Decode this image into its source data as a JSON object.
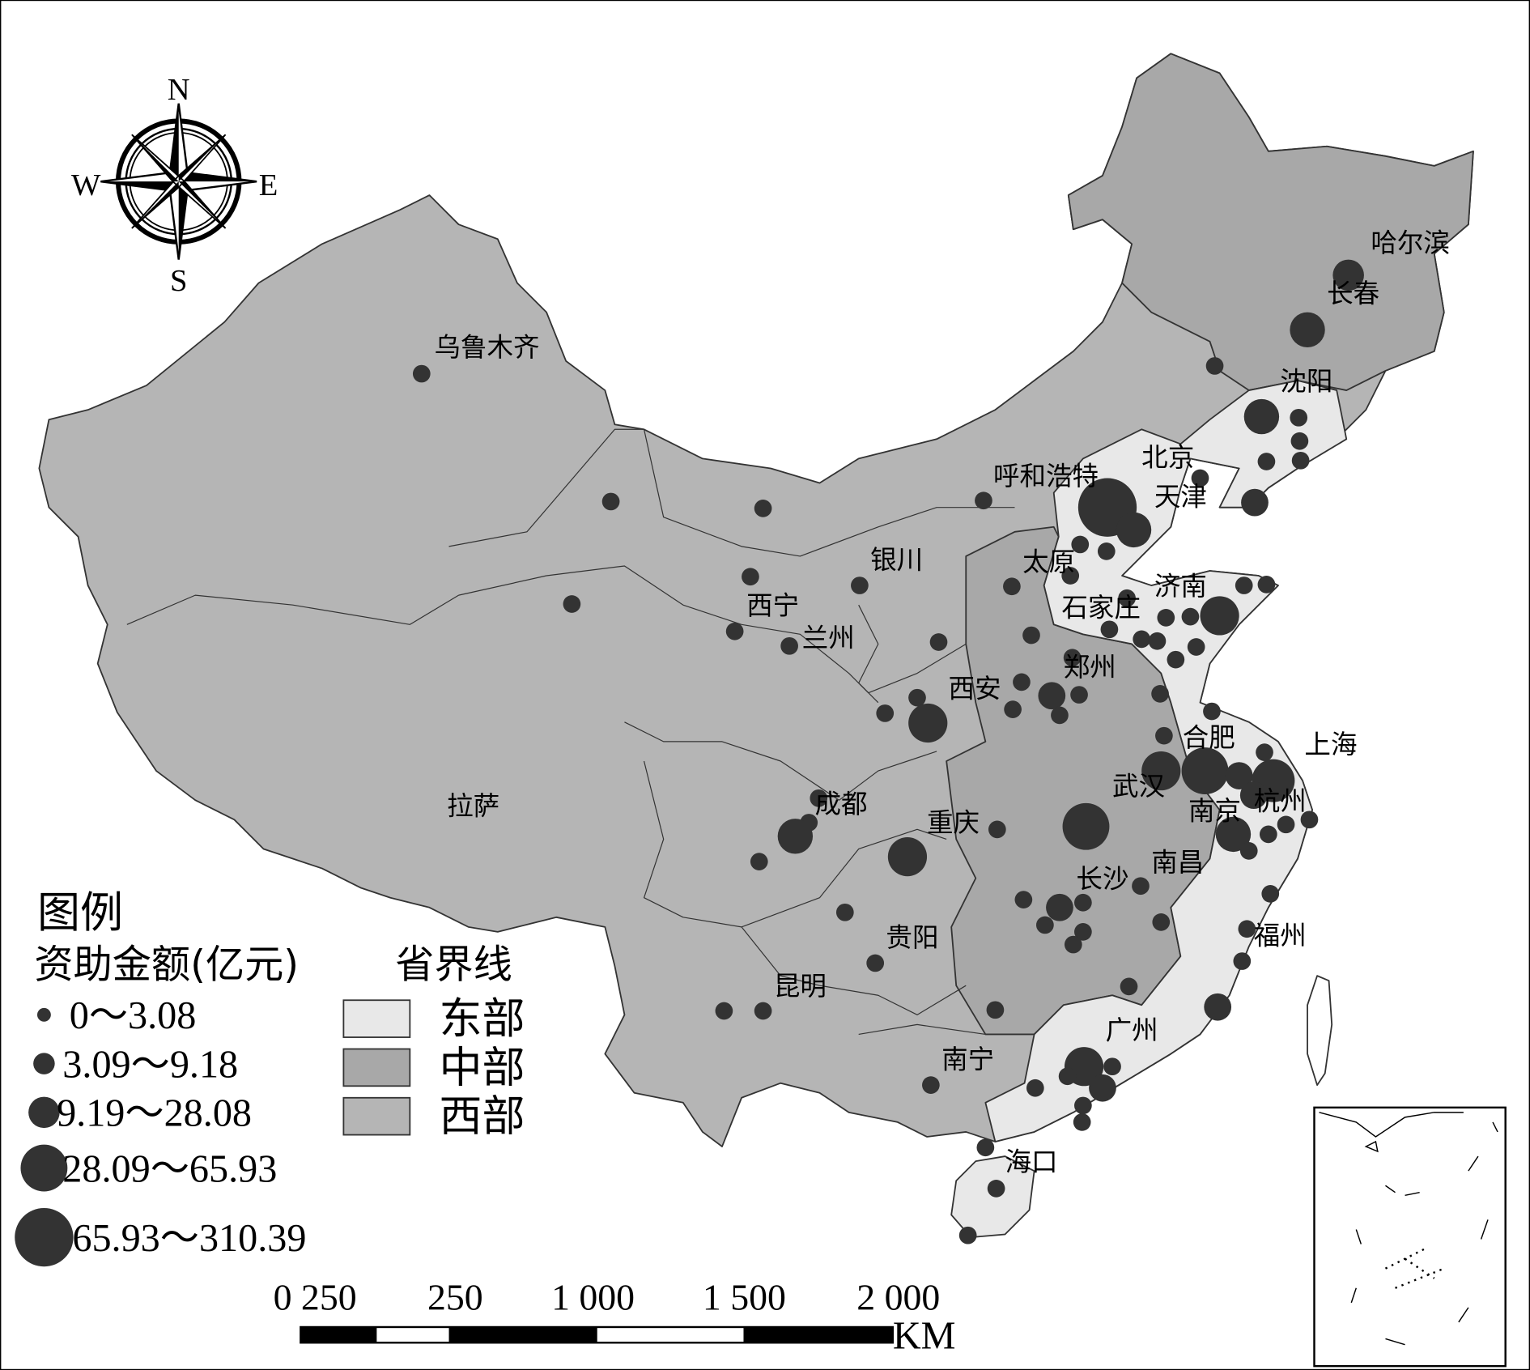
{
  "compass": {
    "n": "N",
    "s": "S",
    "w": "W",
    "e": "E"
  },
  "cities": [
    "乌鲁木齐",
    "哈尔滨",
    "长春",
    "沈阳",
    "北京",
    "天津",
    "呼和浩特",
    "银川",
    "太原",
    "济南",
    "石家庄",
    "西宁",
    "兰州",
    "郑州",
    "西安",
    "合肥",
    "上海",
    "武汉",
    "南京",
    "杭州",
    "拉萨",
    "成都",
    "重庆",
    "南昌",
    "长沙",
    "福州",
    "贵阳",
    "昆明",
    "广州",
    "南宁",
    "海口"
  ],
  "legend": {
    "title": "图例",
    "amount_title": "资助金额(亿元)",
    "boundary_title": "省界线",
    "amount_classes": [
      "0～3.08",
      "3.09～9.18",
      "9.19～28.08",
      "28.09～65.93",
      "65.93～310.39"
    ],
    "regions": [
      "东部",
      "中部",
      "西部"
    ]
  },
  "scale_bar": {
    "labels": [
      "0 250",
      "250",
      "1 000",
      "1 500",
      "2 000"
    ],
    "unit": "KM"
  }
}
